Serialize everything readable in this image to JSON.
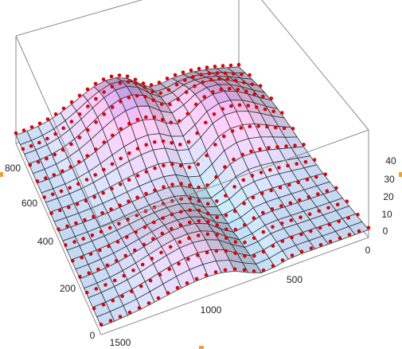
{
  "chart_data": {
    "type": "surface3d",
    "title": "",
    "xlabel": "",
    "ylabel": "",
    "zlabel": "",
    "x_ticks": [
      "0",
      "200",
      "400",
      "600",
      "800"
    ],
    "y_ticks": [
      "0",
      "500",
      "1000",
      "1500"
    ],
    "z_ticks": [
      "0",
      "10",
      "20",
      "30",
      "40"
    ],
    "xlim": [
      0,
      850
    ],
    "ylim": [
      0,
      1550
    ],
    "zlim": [
      0,
      42
    ],
    "grid_n": 20,
    "ridges": [
      {
        "x": 800,
        "y": 900,
        "height": 22
      },
      {
        "x": 650,
        "y": 300,
        "height": 18
      },
      {
        "x": 100,
        "y": 950,
        "height": 10
      }
    ],
    "valley": {
      "y": 620,
      "depth": 6
    },
    "surface_colors": {
      "mesh": "#1e1e1e",
      "points": "#e00000",
      "low": "#b8dff5",
      "mid": "#f2bfe6",
      "high": "#5a57e6"
    },
    "edge_handles": true
  }
}
